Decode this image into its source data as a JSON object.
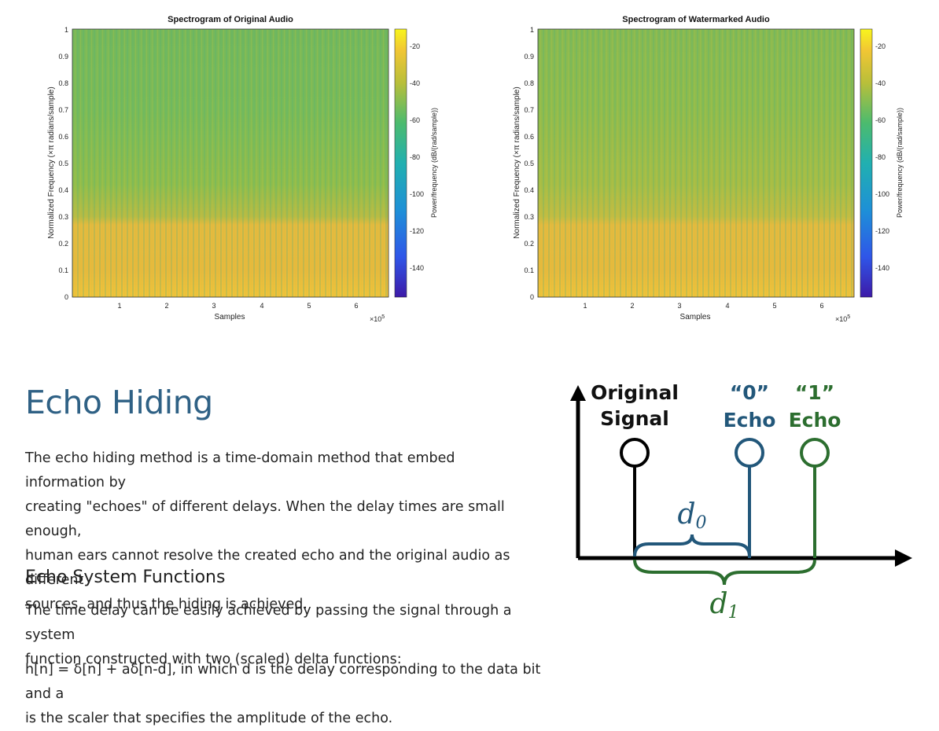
{
  "spectrograms": [
    {
      "title": "Spectrogram of Original Audio",
      "ylabel": "Normalized Frequency (×π radians/sample)",
      "xlabel": "Samples",
      "x_multiplier": "×10",
      "x_multiplier_exp": "5",
      "colorbar_label": "Power/frequency (dB/(rad/sample))",
      "yticks": [
        "0",
        "0.1",
        "0.2",
        "0.3",
        "0.4",
        "0.5",
        "0.6",
        "0.7",
        "0.8",
        "0.9",
        "1"
      ],
      "xticks": [
        "1",
        "2",
        "3",
        "4",
        "5",
        "6"
      ],
      "cticks": [
        "-20",
        "-40",
        "-60",
        "-80",
        "-100",
        "-120",
        "-140"
      ]
    },
    {
      "title": "Spectrogram of Watermarked Audio",
      "ylabel": "Normalized Frequency (×π radians/sample)",
      "xlabel": "Samples",
      "x_multiplier": "×10",
      "x_multiplier_exp": "5",
      "colorbar_label": "Power/frequency (dB/(rad/sample))",
      "yticks": [
        "0",
        "0.1",
        "0.2",
        "0.3",
        "0.4",
        "0.5",
        "0.6",
        "0.7",
        "0.8",
        "0.9",
        "1"
      ],
      "xticks": [
        "1",
        "2",
        "3",
        "4",
        "5",
        "6"
      ],
      "cticks": [
        "-20",
        "-40",
        "-60",
        "-80",
        "-100",
        "-120",
        "-140"
      ]
    }
  ],
  "article": {
    "title": "Echo Hiding",
    "para1_lines": [
      "The echo hiding method is a time-domain method that embed information by",
      "creating \"echoes\" of different delays. When the delay times are small enough,",
      "human ears cannot resolve the created echo and the original audio as different",
      "sources, and thus the hiding is achieved."
    ],
    "subtitle": "Echo System Functions",
    "para2_lines": [
      "The time delay can be easily achieved by passing the signal through a system",
      "function constructed with two (scaled) delta functions:"
    ],
    "para3_lines": [
      "h[n] = δ[n] + aδ[n-d], in which d is the delay corresponding to the data bit and a",
      "is the scaler that specifies the amplitude of the echo."
    ]
  },
  "diagram": {
    "original_line1": "Original",
    "original_line2": "Signal",
    "zero_line1": "“0”",
    "zero_line2": "Echo",
    "one_line1": "“1”",
    "one_line2": "Echo",
    "d0_base": "d",
    "d0_sub": "0",
    "d1_base": "d",
    "d1_sub": "1",
    "colors": {
      "original": "#000000",
      "zero": "#22577a",
      "one": "#2c6e2f"
    }
  }
}
